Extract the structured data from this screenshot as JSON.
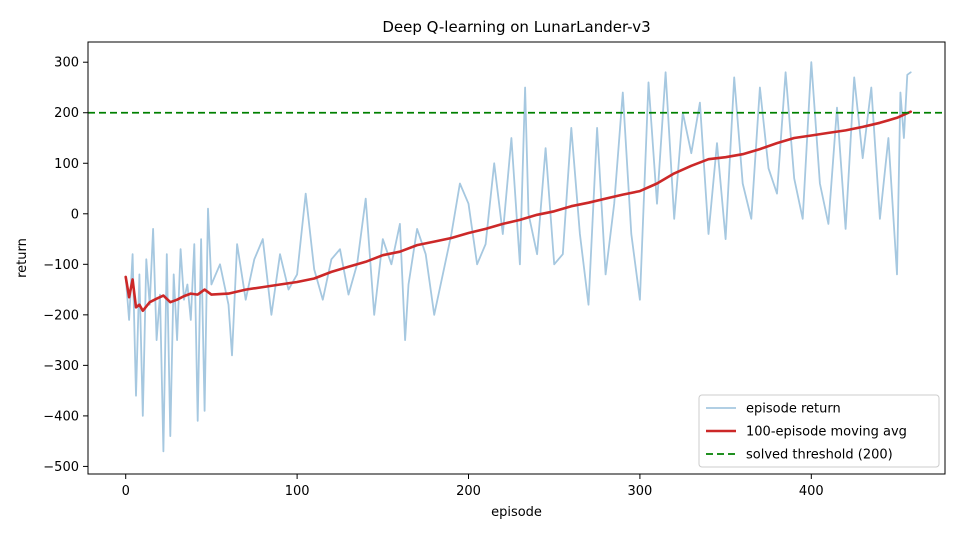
{
  "chart_data": {
    "type": "line",
    "title": "Deep Q-learning on LunarLander-v3",
    "xlabel": "episode",
    "ylabel": "return",
    "xlim": [
      -22,
      478
    ],
    "ylim": [
      -515,
      340
    ],
    "xticks": [
      0,
      100,
      200,
      300,
      400
    ],
    "yticks": [
      -500,
      -400,
      -300,
      -200,
      -100,
      0,
      100,
      200,
      300
    ],
    "ytick_labels": [
      "−500",
      "−400",
      "−300",
      "−200",
      "−100",
      "0",
      "100",
      "200",
      "300"
    ],
    "grid": false,
    "legend_position": "lower-right",
    "threshold": {
      "name": "solved threshold (200)",
      "value": 200,
      "color": "#008000",
      "style": "dashed"
    },
    "series": [
      {
        "name": "episode return",
        "color": "#a6c8e0",
        "x": [
          0,
          2,
          4,
          6,
          8,
          10,
          12,
          14,
          16,
          18,
          20,
          22,
          24,
          26,
          28,
          30,
          32,
          34,
          36,
          38,
          40,
          42,
          44,
          46,
          48,
          50,
          55,
          60,
          62,
          65,
          70,
          75,
          80,
          85,
          90,
          95,
          100,
          105,
          110,
          115,
          120,
          125,
          130,
          135,
          140,
          145,
          150,
          155,
          160,
          163,
          165,
          170,
          175,
          180,
          185,
          190,
          195,
          200,
          205,
          210,
          215,
          220,
          225,
          230,
          233,
          235,
          240,
          245,
          250,
          255,
          260,
          265,
          270,
          275,
          280,
          285,
          290,
          295,
          300,
          305,
          310,
          315,
          320,
          325,
          330,
          335,
          340,
          345,
          350,
          355,
          360,
          365,
          370,
          375,
          380,
          385,
          390,
          395,
          400,
          405,
          410,
          415,
          420,
          425,
          430,
          435,
          440,
          445,
          450,
          452,
          454,
          456,
          458
        ],
        "values": [
          -125,
          -210,
          -80,
          -360,
          -120,
          -400,
          -90,
          -180,
          -30,
          -250,
          -160,
          -470,
          -80,
          -440,
          -120,
          -250,
          -70,
          -170,
          -140,
          -210,
          -60,
          -410,
          -50,
          -390,
          10,
          -140,
          -100,
          -180,
          -280,
          -60,
          -170,
          -90,
          -50,
          -200,
          -80,
          -150,
          -120,
          40,
          -110,
          -170,
          -90,
          -70,
          -160,
          -100,
          30,
          -200,
          -50,
          -100,
          -20,
          -250,
          -140,
          -30,
          -80,
          -200,
          -120,
          -40,
          60,
          20,
          -100,
          -60,
          100,
          -40,
          150,
          -100,
          250,
          0,
          -80,
          130,
          -100,
          -80,
          170,
          -40,
          -180,
          170,
          -120,
          20,
          240,
          -40,
          -170,
          260,
          20,
          280,
          -10,
          200,
          120,
          220,
          -40,
          140,
          -50,
          270,
          60,
          -10,
          250,
          90,
          40,
          280,
          70,
          -10,
          300,
          60,
          -20,
          210,
          -30,
          270,
          110,
          250,
          -10,
          150,
          -120,
          240,
          150,
          275,
          280
        ]
      },
      {
        "name": "100-episode moving avg",
        "color": "#cc2828",
        "x": [
          0,
          2,
          4,
          6,
          8,
          10,
          14,
          18,
          22,
          26,
          30,
          34,
          38,
          42,
          46,
          50,
          60,
          70,
          80,
          90,
          100,
          110,
          120,
          130,
          140,
          150,
          160,
          170,
          180,
          190,
          200,
          210,
          220,
          230,
          240,
          250,
          260,
          270,
          280,
          290,
          300,
          310,
          320,
          330,
          340,
          350,
          360,
          370,
          380,
          390,
          400,
          410,
          420,
          430,
          440,
          450,
          458
        ],
        "values": [
          -125,
          -165,
          -130,
          -185,
          -180,
          -192,
          -175,
          -168,
          -162,
          -175,
          -170,
          -163,
          -158,
          -160,
          -150,
          -160,
          -158,
          -150,
          -145,
          -140,
          -135,
          -128,
          -115,
          -105,
          -95,
          -82,
          -75,
          -62,
          -55,
          -48,
          -38,
          -30,
          -20,
          -12,
          -2,
          5,
          15,
          22,
          30,
          38,
          45,
          60,
          80,
          95,
          108,
          112,
          118,
          128,
          140,
          150,
          155,
          160,
          165,
          172,
          180,
          190,
          202
        ]
      }
    ]
  }
}
